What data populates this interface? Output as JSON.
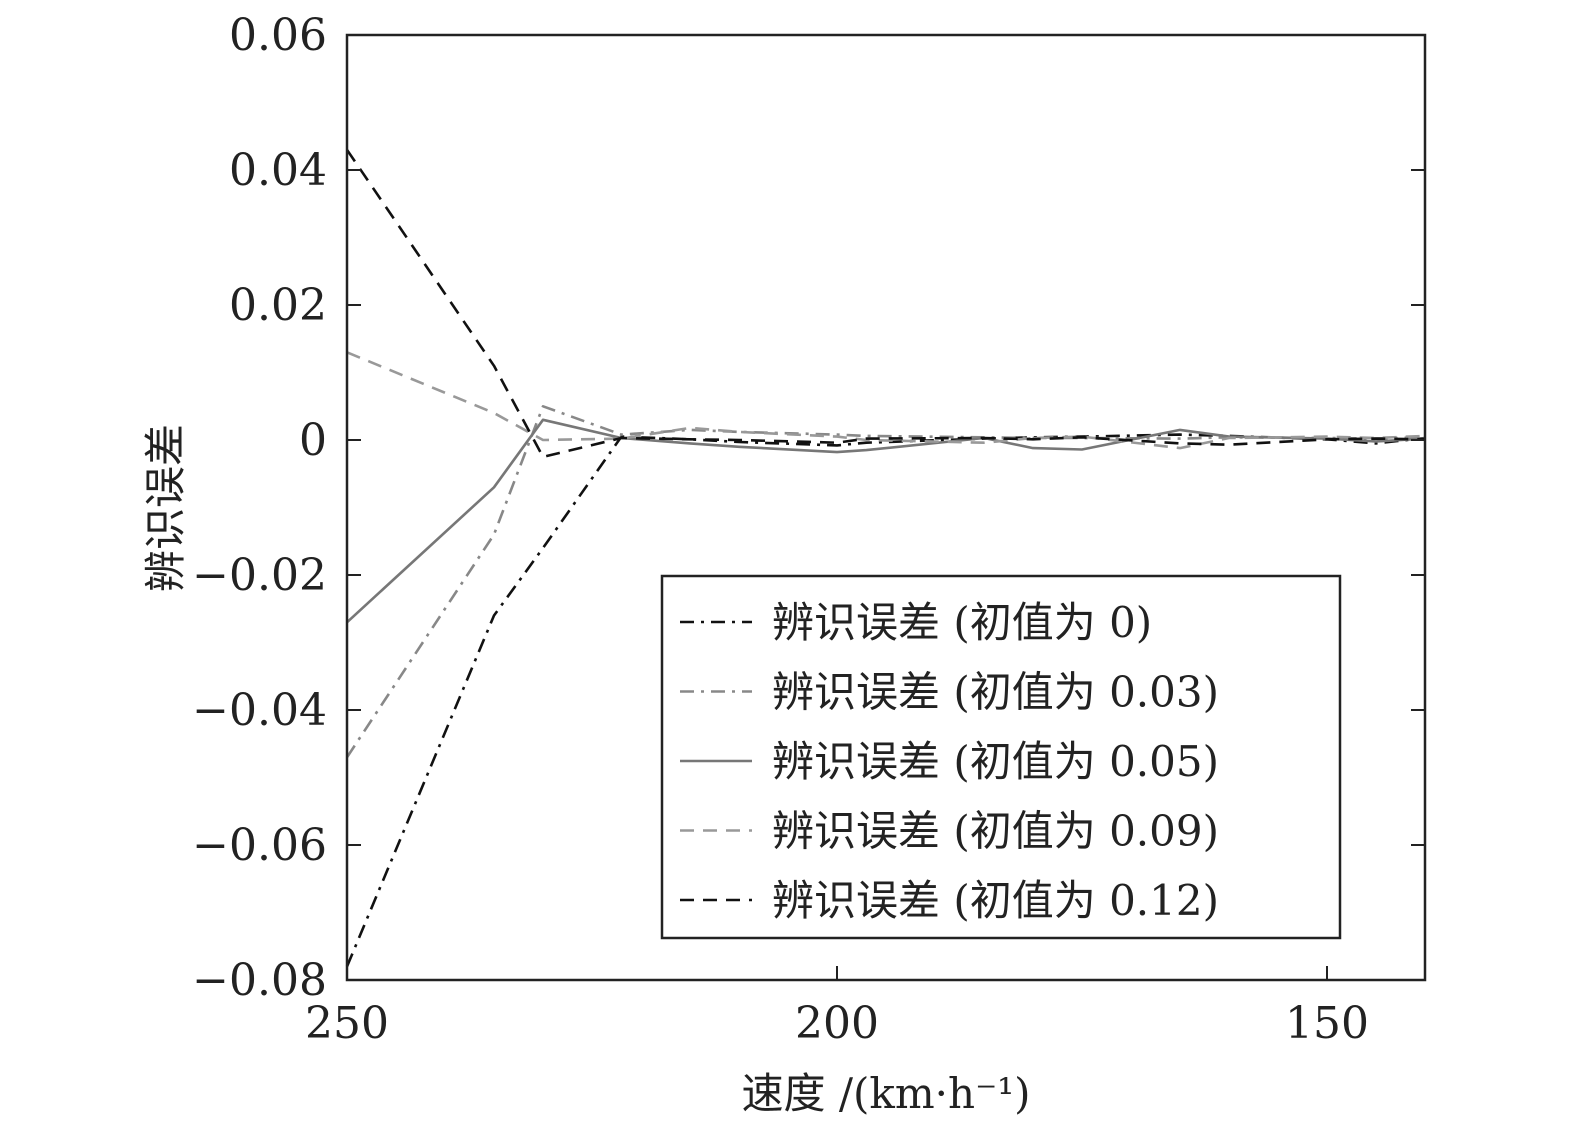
{
  "chart_data": {
    "type": "line",
    "xlabel": "速度 /(km·h⁻¹)",
    "ylabel": "辨识误差",
    "xlim": [
      250,
      140
    ],
    "ylim": [
      -0.08,
      0.06
    ],
    "x_ticks": [
      250,
      200,
      150
    ],
    "y_ticks": [
      -0.08,
      -0.06,
      -0.04,
      -0.02,
      0,
      0.02,
      0.04,
      0.06
    ],
    "x_tick_labels": [
      "250",
      "200",
      "150"
    ],
    "y_tick_labels": [
      "−0.08",
      "−0.06",
      "−0.04",
      "−0.02",
      "0",
      "0.02",
      "0.04",
      "0.06"
    ],
    "legend_position": "lower-right",
    "x": [
      250,
      235,
      230,
      222,
      215,
      210,
      200,
      197,
      185,
      180,
      175,
      165,
      160,
      150,
      145,
      140
    ],
    "series": [
      {
        "name": "辨识误差 (初值为 0)",
        "color": "#111111",
        "dash": "dashdot",
        "values": [
          -0.078,
          -0.026,
          -0.016,
          0.0005,
          0.0001,
          -0.0003,
          -0.0008,
          -0.0004,
          0.0002,
          0.0004,
          0.0005,
          0.0008,
          0.0006,
          0.0001,
          -0.0005,
          0.0003
        ]
      },
      {
        "name": "辨识误差 (初值为 0.03)",
        "color": "#888888",
        "dash": "dashdot",
        "values": [
          -0.047,
          -0.014,
          0.005,
          0.0008,
          0.0015,
          0.0012,
          0.0008,
          0.0006,
          0.0004,
          0.0003,
          0.0003,
          0.0002,
          0.0004,
          0.0003,
          0.0002,
          0.0004
        ]
      },
      {
        "name": "辨识误差 (初值为 0.05)",
        "color": "#777777",
        "dash": "solid",
        "values": [
          -0.027,
          -0.007,
          0.003,
          0.0003,
          -0.0005,
          -0.001,
          -0.0018,
          -0.0015,
          0.0003,
          -0.0012,
          -0.0014,
          0.0015,
          0.0005,
          0.0002,
          -0.0002,
          0.0002
        ]
      },
      {
        "name": "辨识误差 (初值为 0.09)",
        "color": "#999999",
        "dash": "dashed",
        "values": [
          0.013,
          0.004,
          0.0,
          0.0002,
          0.0018,
          0.0012,
          0.0005,
          0.0,
          -0.0004,
          0.0003,
          0.0005,
          -0.0012,
          0.0003,
          0.0005,
          0.0003,
          0.0006
        ]
      },
      {
        "name": "辨识误差 (初值为 0.12)",
        "color": "#111111",
        "dash": "dashed",
        "values": [
          0.043,
          0.011,
          -0.0025,
          0.0003,
          0.0001,
          0.0,
          -0.0004,
          0.0002,
          0.0003,
          0.0001,
          0.0004,
          -0.0005,
          -0.0007,
          0.0001,
          0.0002,
          0.0001
        ]
      }
    ]
  }
}
